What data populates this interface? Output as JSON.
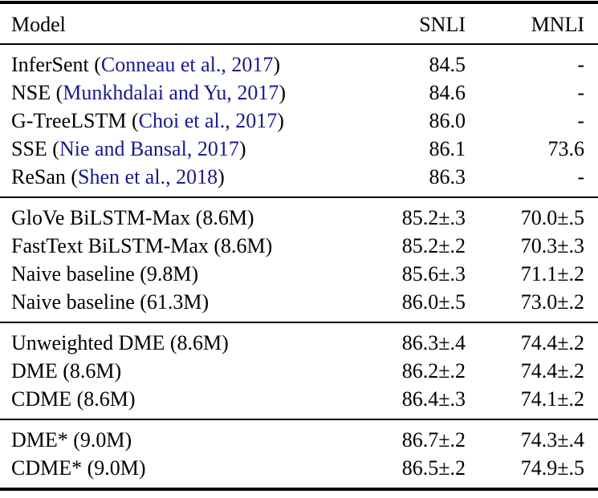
{
  "table": {
    "citation_color": "#1a1a8c",
    "columns": [
      "Model",
      "SNLI",
      "MNLI"
    ],
    "sections": [
      {
        "name": "published-baselines",
        "rows": [
          {
            "label": "InferSent (",
            "citation": "Conneau et al., 2017",
            "label_end": ")",
            "snli": "84.5",
            "mnli": "-"
          },
          {
            "label": "NSE (",
            "citation": "Munkhdalai and Yu, 2017",
            "label_end": ")",
            "snli": "84.6",
            "mnli": "-"
          },
          {
            "label": "G-TreeLSTM (",
            "citation": "Choi et al., 2017",
            "label_end": ")",
            "snli": "86.0",
            "mnli": "-"
          },
          {
            "label": "SSE (",
            "citation": "Nie and Bansal, 2017",
            "label_end": ")",
            "snli": "86.1",
            "mnli": "73.6"
          },
          {
            "label": "ReSan (",
            "citation": "Shen et al., 2018",
            "label_end": ")",
            "snli": "86.3",
            "mnli": "-"
          }
        ]
      },
      {
        "name": "single-embedding-baselines",
        "rows": [
          {
            "label": "GloVe BiLSTM-Max (8.6M)",
            "citation": "",
            "label_end": "",
            "snli": "85.2±.3",
            "mnli": "70.0±.5"
          },
          {
            "label": "FastText BiLSTM-Max (8.6M)",
            "citation": "",
            "label_end": "",
            "snli": "85.2±.2",
            "mnli": "70.3±.3"
          },
          {
            "label": "Naive baseline (9.8M)",
            "citation": "",
            "label_end": "",
            "snli": "85.6±.3",
            "mnli": "71.1±.2"
          },
          {
            "label": "Naive baseline (61.3M)",
            "citation": "",
            "label_end": "",
            "snli": "86.0±.5",
            "mnli": "73.0±.2"
          }
        ]
      },
      {
        "name": "dme-models",
        "rows": [
          {
            "label": "Unweighted DME (8.6M)",
            "citation": "",
            "label_end": "",
            "snli": "86.3±.4",
            "mnli": "74.4±.2"
          },
          {
            "label": "DME (8.6M)",
            "citation": "",
            "label_end": "",
            "snli": "86.2±.2",
            "mnli": "74.4±.2"
          },
          {
            "label": "CDME (8.6M)",
            "citation": "",
            "label_end": "",
            "snli": "86.4±.3",
            "mnli": "74.1±.2"
          }
        ]
      },
      {
        "name": "dme-star-models",
        "rows": [
          {
            "label": "DME* (9.0M)",
            "citation": "",
            "label_end": "",
            "snli": "86.7±.2",
            "mnli": "74.3±.4"
          },
          {
            "label": "CDME* (9.0M)",
            "citation": "",
            "label_end": "",
            "snli": "86.5±.2",
            "mnli": "74.9±.5"
          }
        ]
      }
    ]
  }
}
